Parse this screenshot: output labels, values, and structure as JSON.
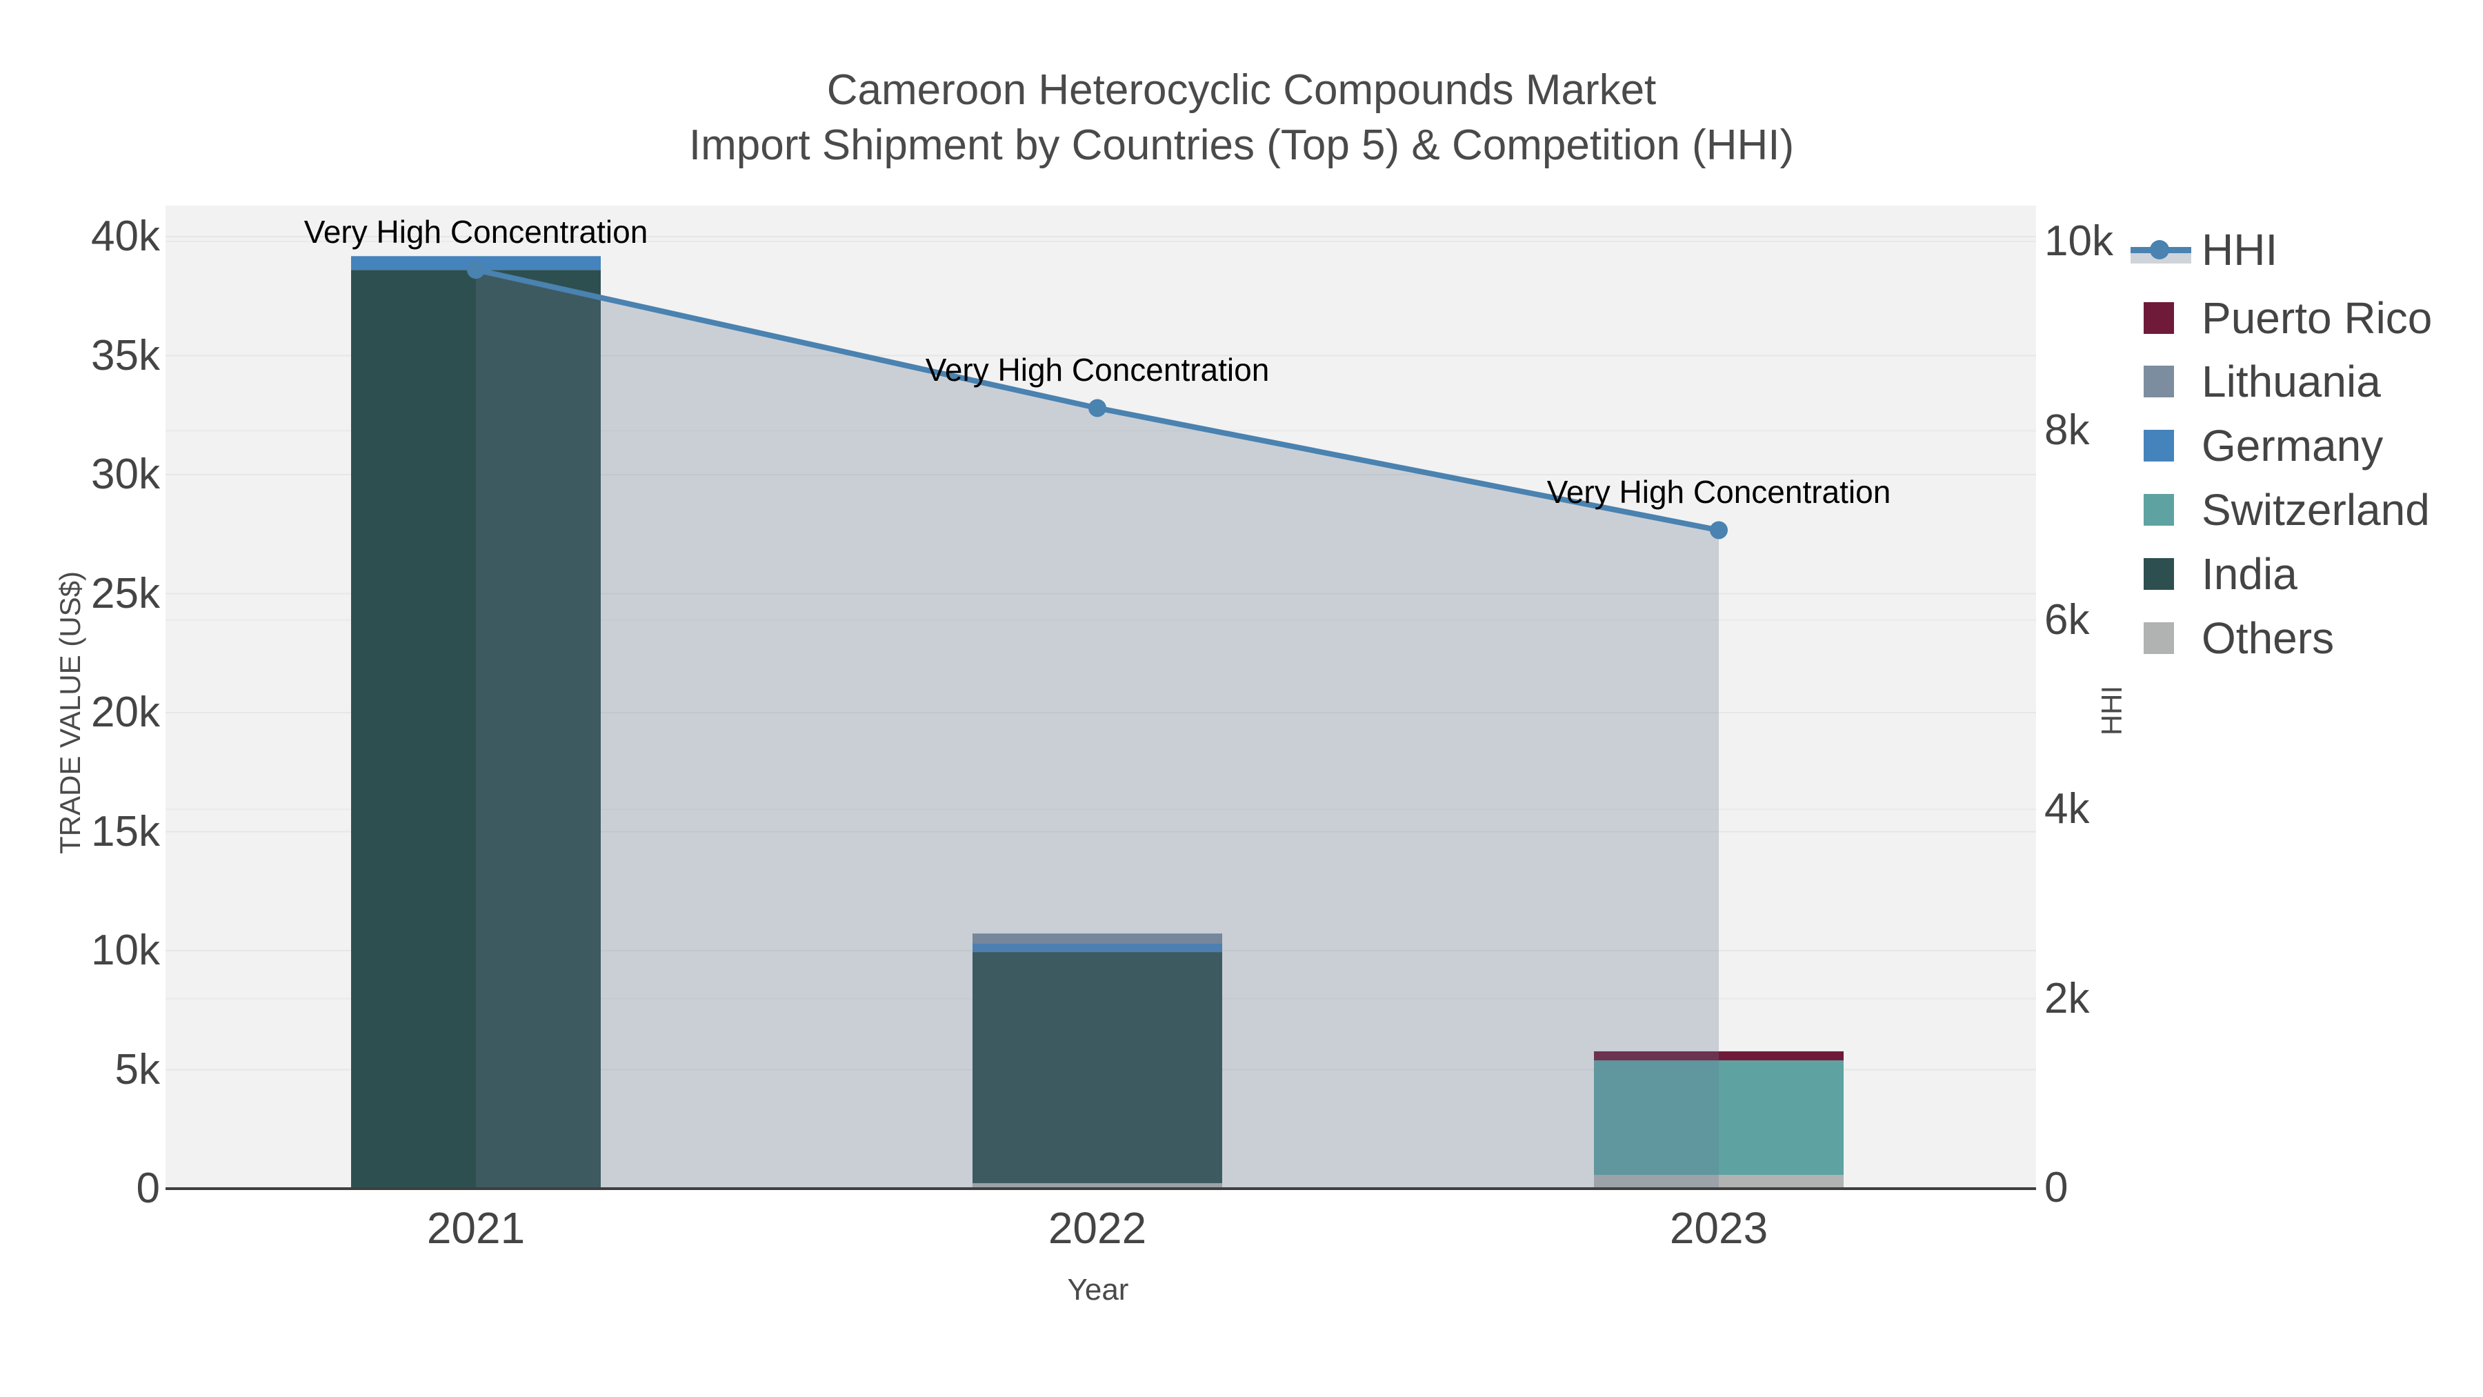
{
  "title": {
    "line1": "Cameroon Heterocyclic Compounds Market",
    "line2": "Import Shipment by Countries (Top 5) & Competition (HHI)"
  },
  "chart_data": {
    "type": "combo-stacked-bar-line",
    "categories": [
      "2021",
      "2022",
      "2023"
    ],
    "bar_series": [
      {
        "name": "Puerto Rico",
        "color": "#701a3a",
        "values": [
          0,
          0,
          380
        ]
      },
      {
        "name": "Lithuania",
        "color": "#7d8da0",
        "values": [
          0,
          430,
          0
        ]
      },
      {
        "name": "Germany",
        "color": "#4583bd",
        "values": [
          580,
          350,
          0
        ]
      },
      {
        "name": "Switzerland",
        "color": "#5fa2a2",
        "values": [
          0,
          0,
          4810
        ]
      },
      {
        "name": "India",
        "color": "#2e4f50",
        "values": [
          38600,
          9710,
          0
        ]
      },
      {
        "name": "Others",
        "color": "#b0b3b2",
        "values": [
          0,
          230,
          580
        ]
      }
    ],
    "stack_order_bottom_to_top": [
      "Others",
      "India",
      "Switzerland",
      "Germany",
      "Lithuania",
      "Puerto Rico"
    ],
    "bar_totals": [
      39180,
      10720,
      5770
    ],
    "line_series": {
      "name": "HHI",
      "color": "#4a82b0",
      "area_fill": "rgba(100,120,145,0.28)",
      "axis": "right",
      "values": [
        9700,
        8240,
        6950
      ]
    },
    "annotations": [
      {
        "text": "Very High Concentration",
        "category": "2021"
      },
      {
        "text": "Very High Concentration",
        "category": "2022"
      },
      {
        "text": "Very High Concentration",
        "category": "2023"
      }
    ],
    "axes": {
      "left": {
        "title": "TRADE VALUE (US$)",
        "tick_labels": [
          "0",
          "5k",
          "10k",
          "15k",
          "20k",
          "25k",
          "30k",
          "35k",
          "40k"
        ],
        "tick_values": [
          0,
          5000,
          10000,
          15000,
          20000,
          25000,
          30000,
          35000,
          40000
        ],
        "range": [
          0,
          41300
        ]
      },
      "right": {
        "title": "HHI",
        "tick_labels": [
          "0",
          "2k",
          "4k",
          "6k",
          "8k",
          "10k"
        ],
        "tick_values": [
          0,
          2000,
          4000,
          6000,
          8000,
          10000
        ],
        "range": [
          0,
          10000
        ]
      },
      "x": {
        "title": "Year"
      }
    },
    "legend_order": [
      "HHI",
      "Puerto Rico",
      "Lithuania",
      "Germany",
      "Switzerland",
      "India",
      "Others"
    ],
    "grid": true,
    "legend_position": "right"
  },
  "colors": {
    "plot_background": "#f2f2f2",
    "gridline_left": "#e6e6e6",
    "gridline_right": "#ebe9e9",
    "axis_line": "#3f3f3f",
    "tick_text": "#444444",
    "title_text": "#4a4a4a",
    "annotation_text": "#000000",
    "legend_band": "#cfd4db"
  }
}
